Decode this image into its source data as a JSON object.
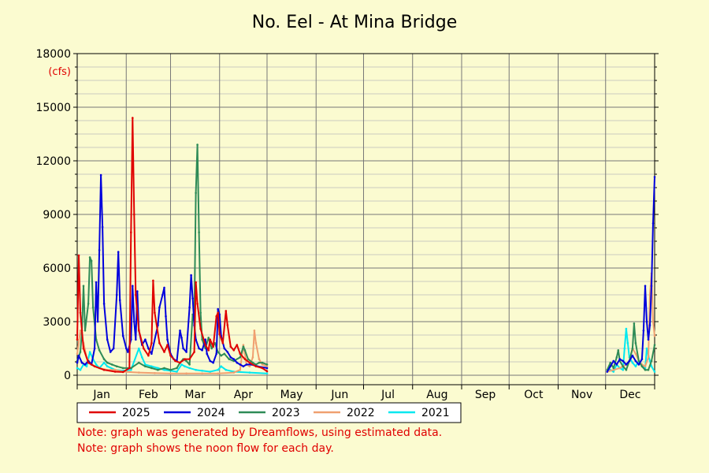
{
  "chart_data": {
    "type": "line",
    "title": "No. Eel - At Mina Bridge",
    "ylabel": "(cfs)",
    "xlabel": "",
    "ylim": [
      0,
      18000
    ],
    "yticks": [
      0,
      3000,
      6000,
      9000,
      12000,
      15000,
      18000
    ],
    "x_unit": "day of year",
    "xlim": [
      1,
      366
    ],
    "grid": true,
    "legend_position": "bottom",
    "months": [
      "Jan",
      "Feb",
      "Mar",
      "Apr",
      "May",
      "Jun",
      "Jul",
      "Aug",
      "Sep",
      "Oct",
      "Nov",
      "Dec"
    ],
    "series": [
      {
        "name": "2025",
        "color": "#e00000",
        "points": [
          [
            1,
            2000
          ],
          [
            2,
            6700
          ],
          [
            3,
            3500
          ],
          [
            5,
            1500
          ],
          [
            8,
            700
          ],
          [
            12,
            500
          ],
          [
            18,
            300
          ],
          [
            25,
            200
          ],
          [
            30,
            180
          ],
          [
            34,
            400
          ],
          [
            35,
            8000
          ],
          [
            36,
            14400
          ],
          [
            37,
            9000
          ],
          [
            38,
            4500
          ],
          [
            40,
            2500
          ],
          [
            43,
            1500
          ],
          [
            46,
            1100
          ],
          [
            48,
            1800
          ],
          [
            49,
            5300
          ],
          [
            50,
            3500
          ],
          [
            53,
            1800
          ],
          [
            56,
            1300
          ],
          [
            58,
            1700
          ],
          [
            60,
            1100
          ],
          [
            63,
            800
          ],
          [
            66,
            700
          ],
          [
            69,
            900
          ],
          [
            72,
            900
          ],
          [
            75,
            1300
          ],
          [
            76,
            5200
          ],
          [
            77,
            4000
          ],
          [
            79,
            2600
          ],
          [
            82,
            1700
          ],
          [
            84,
            1400
          ],
          [
            85,
            2000
          ],
          [
            87,
            1600
          ],
          [
            89,
            3300
          ],
          [
            90,
            3500
          ],
          [
            91,
            2300
          ],
          [
            93,
            1800
          ],
          [
            95,
            3600
          ],
          [
            96,
            2800
          ],
          [
            98,
            1600
          ],
          [
            100,
            1400
          ],
          [
            102,
            1700
          ],
          [
            104,
            1200
          ],
          [
            107,
            900
          ],
          [
            110,
            700
          ],
          [
            114,
            500
          ],
          [
            118,
            400
          ],
          [
            121,
            220
          ]
        ]
      },
      {
        "name": "2024",
        "color": "#0000dd",
        "points": [
          [
            1,
            700
          ],
          [
            2,
            1100
          ],
          [
            4,
            700
          ],
          [
            6,
            600
          ],
          [
            8,
            800
          ],
          [
            10,
            600
          ],
          [
            12,
            1500
          ],
          [
            13,
            5200
          ],
          [
            14,
            3000
          ],
          [
            15,
            7000
          ],
          [
            16,
            11200
          ],
          [
            17,
            8300
          ],
          [
            18,
            4000
          ],
          [
            20,
            2000
          ],
          [
            22,
            1300
          ],
          [
            24,
            1500
          ],
          [
            26,
            4500
          ],
          [
            27,
            6900
          ],
          [
            28,
            4200
          ],
          [
            30,
            2200
          ],
          [
            32,
            1500
          ],
          [
            33,
            1300
          ],
          [
            35,
            2000
          ],
          [
            36,
            5000
          ],
          [
            37,
            3000
          ],
          [
            38,
            2000
          ],
          [
            39,
            4700
          ],
          [
            40,
            2500
          ],
          [
            42,
            1700
          ],
          [
            44,
            2000
          ],
          [
            46,
            1500
          ],
          [
            48,
            1200
          ],
          [
            52,
            2800
          ],
          [
            53,
            3800
          ],
          [
            55,
            4500
          ],
          [
            56,
            4900
          ],
          [
            57,
            3300
          ],
          [
            58,
            2000
          ],
          [
            60,
            1200
          ],
          [
            62,
            900
          ],
          [
            64,
            800
          ],
          [
            66,
            2500
          ],
          [
            67,
            2100
          ],
          [
            68,
            1500
          ],
          [
            70,
            1300
          ],
          [
            72,
            3800
          ],
          [
            73,
            5600
          ],
          [
            74,
            4300
          ],
          [
            75,
            2800
          ],
          [
            76,
            2000
          ],
          [
            78,
            1500
          ],
          [
            80,
            1400
          ],
          [
            82,
            2000
          ],
          [
            83,
            1200
          ],
          [
            85,
            800
          ],
          [
            87,
            700
          ],
          [
            89,
            1200
          ],
          [
            90,
            3700
          ],
          [
            91,
            3400
          ],
          [
            92,
            2200
          ],
          [
            94,
            1500
          ],
          [
            96,
            1300
          ],
          [
            98,
            1000
          ],
          [
            100,
            900
          ],
          [
            102,
            700
          ],
          [
            104,
            600
          ],
          [
            106,
            500
          ],
          [
            108,
            600
          ],
          [
            111,
            600
          ],
          [
            115,
            500
          ],
          [
            121,
            400
          ],
          [
            336,
            200
          ],
          [
            338,
            500
          ],
          [
            340,
            800
          ],
          [
            342,
            600
          ],
          [
            344,
            900
          ],
          [
            346,
            800
          ],
          [
            348,
            600
          ],
          [
            350,
            800
          ],
          [
            352,
            1100
          ],
          [
            354,
            800
          ],
          [
            356,
            600
          ],
          [
            358,
            900
          ],
          [
            359,
            2500
          ],
          [
            360,
            5000
          ],
          [
            361,
            3000
          ],
          [
            362,
            2000
          ],
          [
            363,
            2800
          ],
          [
            364,
            5000
          ],
          [
            365,
            8500
          ],
          [
            366,
            11100
          ]
        ]
      },
      {
        "name": "2023",
        "color": "#2e8b57",
        "points": [
          [
            1,
            800
          ],
          [
            3,
            1300
          ],
          [
            4,
            2500
          ],
          [
            5,
            5000
          ],
          [
            6,
            2500
          ],
          [
            8,
            4000
          ],
          [
            9,
            6600
          ],
          [
            10,
            6400
          ],
          [
            11,
            3800
          ],
          [
            13,
            2000
          ],
          [
            15,
            1400
          ],
          [
            18,
            900
          ],
          [
            20,
            700
          ],
          [
            23,
            600
          ],
          [
            26,
            500
          ],
          [
            30,
            400
          ],
          [
            35,
            400
          ],
          [
            40,
            700
          ],
          [
            44,
            500
          ],
          [
            48,
            400
          ],
          [
            52,
            300
          ],
          [
            56,
            400
          ],
          [
            60,
            300
          ],
          [
            64,
            400
          ],
          [
            66,
            700
          ],
          [
            68,
            900
          ],
          [
            70,
            800
          ],
          [
            72,
            600
          ],
          [
            74,
            3400
          ],
          [
            75,
            3000
          ],
          [
            76,
            10200
          ],
          [
            77,
            12900
          ],
          [
            78,
            8000
          ],
          [
            79,
            3500
          ],
          [
            80,
            2000
          ],
          [
            82,
            1500
          ],
          [
            84,
            2100
          ],
          [
            86,
            1500
          ],
          [
            88,
            1800
          ],
          [
            90,
            1300
          ],
          [
            92,
            1100
          ],
          [
            94,
            1200
          ],
          [
            97,
            900
          ],
          [
            100,
            800
          ],
          [
            104,
            1000
          ],
          [
            106,
            1600
          ],
          [
            107,
            1400
          ],
          [
            109,
            900
          ],
          [
            112,
            700
          ],
          [
            114,
            600
          ],
          [
            116,
            700
          ],
          [
            118,
            700
          ],
          [
            121,
            600
          ],
          [
            336,
            300
          ],
          [
            338,
            700
          ],
          [
            340,
            400
          ],
          [
            342,
            1000
          ],
          [
            343,
            1400
          ],
          [
            344,
            800
          ],
          [
            346,
            500
          ],
          [
            348,
            300
          ],
          [
            350,
            800
          ],
          [
            352,
            1500
          ],
          [
            353,
            2900
          ],
          [
            354,
            1800
          ],
          [
            356,
            800
          ],
          [
            358,
            500
          ],
          [
            360,
            300
          ],
          [
            362,
            300
          ],
          [
            364,
            800
          ],
          [
            366,
            1700
          ]
        ]
      },
      {
        "name": "2022",
        "color": "#f0a070",
        "points": [
          [
            1,
            1200
          ],
          [
            3,
            2500
          ],
          [
            5,
            1800
          ],
          [
            7,
            1000
          ],
          [
            9,
            700
          ],
          [
            12,
            500
          ],
          [
            15,
            400
          ],
          [
            20,
            300
          ],
          [
            25,
            300
          ],
          [
            30,
            200
          ],
          [
            40,
            150
          ],
          [
            50,
            120
          ],
          [
            60,
            100
          ],
          [
            70,
            100
          ],
          [
            80,
            100
          ],
          [
            90,
            100
          ],
          [
            100,
            150
          ],
          [
            104,
            300
          ],
          [
            106,
            1700
          ],
          [
            107,
            1200
          ],
          [
            108,
            600
          ],
          [
            110,
            500
          ],
          [
            112,
            1000
          ],
          [
            113,
            2500
          ],
          [
            114,
            1800
          ],
          [
            116,
            900
          ],
          [
            118,
            600
          ],
          [
            121,
            500
          ],
          [
            336,
            200
          ],
          [
            340,
            300
          ],
          [
            344,
            400
          ],
          [
            348,
            600
          ],
          [
            350,
            800
          ],
          [
            352,
            1500
          ],
          [
            354,
            1200
          ],
          [
            356,
            800
          ],
          [
            358,
            600
          ],
          [
            360,
            500
          ],
          [
            362,
            1000
          ],
          [
            363,
            4500
          ],
          [
            364,
            5700
          ],
          [
            365,
            3000
          ],
          [
            366,
            2200
          ]
        ]
      },
      {
        "name": "2021",
        "color": "#00e8f0",
        "points": [
          [
            1,
            400
          ],
          [
            3,
            300
          ],
          [
            5,
            600
          ],
          [
            7,
            500
          ],
          [
            9,
            1300
          ],
          [
            11,
            900
          ],
          [
            13,
            600
          ],
          [
            15,
            400
          ],
          [
            18,
            700
          ],
          [
            20,
            500
          ],
          [
            25,
            300
          ],
          [
            30,
            250
          ],
          [
            35,
            300
          ],
          [
            40,
            1500
          ],
          [
            42,
            1000
          ],
          [
            44,
            600
          ],
          [
            48,
            500
          ],
          [
            52,
            400
          ],
          [
            56,
            300
          ],
          [
            60,
            250
          ],
          [
            64,
            200
          ],
          [
            67,
            600
          ],
          [
            69,
            500
          ],
          [
            72,
            400
          ],
          [
            76,
            300
          ],
          [
            80,
            250
          ],
          [
            85,
            200
          ],
          [
            90,
            300
          ],
          [
            92,
            500
          ],
          [
            95,
            300
          ],
          [
            100,
            200
          ],
          [
            110,
            150
          ],
          [
            121,
            100
          ],
          [
            336,
            200
          ],
          [
            338,
            300
          ],
          [
            340,
            200
          ],
          [
            342,
            600
          ],
          [
            344,
            400
          ],
          [
            346,
            300
          ],
          [
            347,
            1500
          ],
          [
            348,
            2600
          ],
          [
            349,
            1800
          ],
          [
            350,
            1000
          ],
          [
            352,
            700
          ],
          [
            354,
            500
          ],
          [
            356,
            800
          ],
          [
            358,
            600
          ],
          [
            360,
            400
          ],
          [
            361,
            1500
          ],
          [
            362,
            1100
          ],
          [
            364,
            500
          ],
          [
            366,
            200
          ]
        ]
      }
    ]
  },
  "notes": [
    "Note: graph was generated by Dreamflows, using estimated data.",
    "Note: graph shows the noon flow for each day."
  ]
}
